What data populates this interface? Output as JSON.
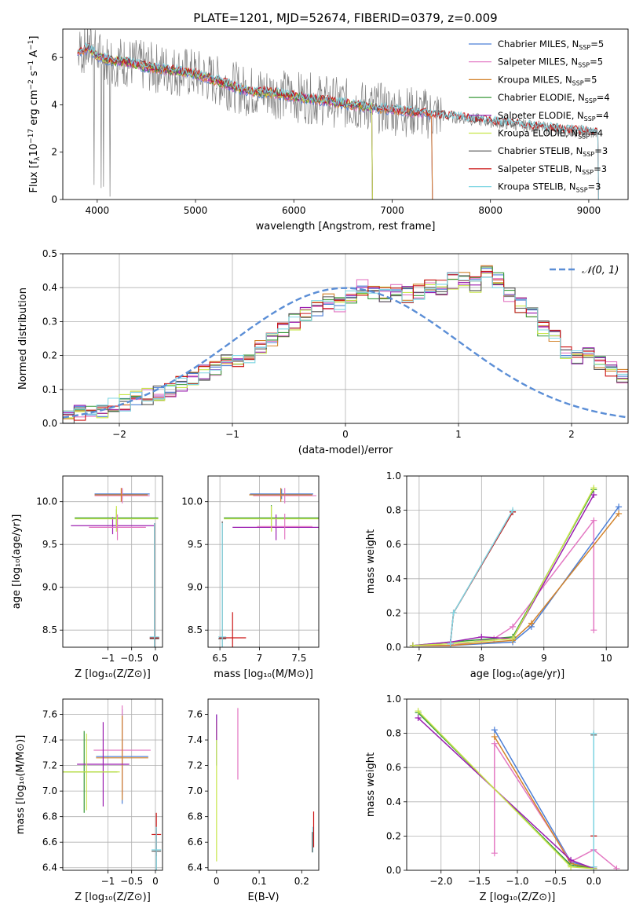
{
  "title": "PLATE=1201, MJD=52674, FIBERID=0379, z=0.009",
  "colors": {
    "Chabrier MILES": "#4c7fd6",
    "Salpeter MILES": "#e377c2",
    "Kroupa MILES": "#d2822a",
    "Chabrier ELODIE": "#3a9a3a",
    "Salpeter ELODIE": "#9b1fb0",
    "Kroupa ELODIE": "#c8e64a",
    "Chabrier STELIB": "#555555",
    "Salpeter STELIB": "#cc1414",
    "Kroupa STELIB": "#7fd6e3",
    "data": "#808080",
    "gauss": "#5b8ed6"
  },
  "chart_data": [
    {
      "type": "line",
      "xlabel": "wavelength [Angstrom, rest frame]",
      "ylabel": "Flux [f_λ10^-17 erg cm^-2 s^-1 A^-1]",
      "xlim": [
        3650,
        9400
      ],
      "ylim": [
        0,
        7.2
      ],
      "xticks": [
        4000,
        5000,
        6000,
        7000,
        8000,
        9000
      ],
      "yticks": [
        0,
        2,
        4,
        6
      ],
      "grid": false,
      "legend": "top-right",
      "legend_entries": [
        "Chabrier MILES, N_SSP=5",
        "Salpeter MILES, N_SSP=5",
        "Kroupa MILES, N_SSP=5",
        "Chabrier ELODIE, N_SSP=4",
        "Salpeter ELODIE, N_SSP=4",
        "Kroupa ELODIE, N_SSP=4",
        "Chabrier STELIB, N_SSP=3",
        "Salpeter STELIB, N_SSP=3",
        "Kroupa STELIB, N_SSP=3"
      ],
      "continuum": {
        "x": [
          3800,
          3900,
          4000,
          4100,
          4300,
          4500,
          4700,
          5000,
          5300,
          5500,
          5800,
          6000,
          6300,
          6600,
          7000,
          7400,
          7800,
          8200,
          8600,
          9100
        ],
        "y": [
          6.2,
          6.4,
          6.1,
          5.9,
          5.8,
          5.6,
          5.5,
          5.3,
          4.9,
          4.6,
          4.5,
          4.35,
          4.2,
          4.0,
          3.8,
          3.6,
          3.4,
          3.2,
          3.0,
          2.8
        ]
      }
    },
    {
      "type": "line",
      "xlabel": "(data-model)/error",
      "ylabel": "Normed distribution",
      "xlim": [
        -2.5,
        2.5
      ],
      "ylim": [
        0,
        0.5
      ],
      "xticks": [
        -2,
        -1,
        0,
        1,
        2
      ],
      "yticks": [
        0.0,
        0.1,
        0.2,
        0.3,
        0.4,
        0.5
      ],
      "grid": true,
      "legend": "top-right",
      "legend_entry": "𝒩(0, 1)",
      "hist_edges_start": -2.5,
      "hist_bin_width": 0.1,
      "hist_values": [
        0.02,
        0.03,
        0.035,
        0.04,
        0.05,
        0.06,
        0.07,
        0.08,
        0.09,
        0.1,
        0.115,
        0.13,
        0.15,
        0.165,
        0.18,
        0.19,
        0.2,
        0.22,
        0.25,
        0.28,
        0.3,
        0.32,
        0.34,
        0.36,
        0.35,
        0.37,
        0.4,
        0.39,
        0.38,
        0.4,
        0.38,
        0.39,
        0.41,
        0.4,
        0.42,
        0.43,
        0.41,
        0.45,
        0.42,
        0.38,
        0.35,
        0.32,
        0.28,
        0.25,
        0.21,
        0.19,
        0.2,
        0.18,
        0.16,
        0.14
      ]
    },
    {
      "type": "scatter",
      "xlabel": "Z [log10(Z/Z⊙)]",
      "ylabel": "age  [log10(age/yr)]",
      "xlim": [
        -1.95,
        0.15
      ],
      "ylim": [
        8.3,
        10.3
      ],
      "xticks": [
        -1,
        -0.5,
        0
      ],
      "xticklabels": [
        "−1",
        "−0.5",
        "0"
      ],
      "yticks": [
        8.5,
        9.0,
        9.5,
        10.0
      ],
      "grid": true,
      "errorbars": [
        {
          "s": "Chabrier MILES",
          "x": -0.7,
          "xerr": 0.58,
          "y": 10.09,
          "yerr": 0.06
        },
        {
          "s": "Salpeter MILES",
          "x": -0.7,
          "xerr": 0.58,
          "y": 10.07,
          "yerr": 0.09
        },
        {
          "s": "Kroupa MILES",
          "x": -0.72,
          "xerr": 0.56,
          "y": 10.08,
          "yerr": 0.08
        },
        {
          "s": "Chabrier ELODIE",
          "x": -0.82,
          "xerr": 0.88,
          "y": 9.81,
          "yerr": 0.1
        },
        {
          "s": "Salpeter ELODIE",
          "x": -0.9,
          "xerr": 0.88,
          "y": 9.72,
          "yerr": 0.1
        },
        {
          "s": "Kroupa ELODIE",
          "x": -0.82,
          "xerr": 0.88,
          "y": 9.8,
          "yerr": 0.15
        },
        {
          "s": "Salpeter MILES",
          "x": -0.8,
          "xerr": 0.6,
          "y": 9.7,
          "yerr": 0.15
        },
        {
          "s": "Chabrier STELIB",
          "x": -0.02,
          "xerr": 0.1,
          "y": 8.4,
          "yerr": 1.35
        },
        {
          "s": "Salpeter STELIB",
          "x": -0.02,
          "xerr": 0.1,
          "y": 8.41,
          "yerr": 1.34
        },
        {
          "s": "Kroupa STELIB",
          "x": -0.02,
          "xerr": 0.1,
          "y": 8.42,
          "yerr": 1.33
        }
      ]
    },
    {
      "type": "scatter",
      "xlabel": "mass [log10(M/M⊙)]",
      "ylabel": "",
      "xlim": [
        6.35,
        7.75
      ],
      "ylim": [
        8.3,
        10.3
      ],
      "xticks": [
        6.5,
        7.0,
        7.5
      ],
      "yticks": [
        8.5,
        9.0,
        9.5,
        10.0
      ],
      "grid": true,
      "errorbars": [
        {
          "s": "Chabrier MILES",
          "x": 7.28,
          "xerr": 0.4,
          "y": 10.09,
          "yerr": 0.06
        },
        {
          "s": "Salpeter MILES",
          "x": 7.32,
          "xerr": 0.4,
          "y": 10.07,
          "yerr": 0.09
        },
        {
          "s": "Kroupa MILES",
          "x": 7.27,
          "xerr": 0.4,
          "y": 10.08,
          "yerr": 0.08
        },
        {
          "s": "Chabrier ELODIE",
          "x": 7.15,
          "xerr": 0.6,
          "y": 9.81,
          "yerr": 0.15
        },
        {
          "s": "Salpeter ELODIE",
          "x": 7.21,
          "xerr": 0.55,
          "y": 9.7,
          "yerr": 0.15
        },
        {
          "s": "Kroupa ELODIE",
          "x": 7.15,
          "xerr": 0.6,
          "y": 9.8,
          "yerr": 0.15
        },
        {
          "s": "Salpeter MILES",
          "x": 7.32,
          "xerr": 0.35,
          "y": 9.71,
          "yerr": 0.15
        },
        {
          "s": "Chabrier STELIB",
          "x": 6.53,
          "xerr": 0.05,
          "y": 8.4,
          "yerr": 1.37
        },
        {
          "s": "Salpeter STELIB",
          "x": 6.66,
          "xerr": 0.17,
          "y": 8.41,
          "yerr": 0.3
        },
        {
          "s": "Kroupa STELIB",
          "x": 6.53,
          "xerr": 0.05,
          "y": 8.42,
          "yerr": 1.33
        }
      ]
    },
    {
      "type": "line",
      "xlabel": "age  [log10(age/yr)]",
      "ylabel": "mass weight",
      "xlim": [
        6.8,
        10.35
      ],
      "ylim": [
        0,
        1
      ],
      "xticks": [
        7,
        8,
        9,
        10
      ],
      "yticks": [
        0.0,
        0.2,
        0.4,
        0.6,
        0.8,
        1.0
      ],
      "grid": true,
      "series": [
        {
          "s": "Chabrier MILES",
          "x": [
            6.9,
            7.5,
            8.5,
            8.8,
            10.2
          ],
          "y": [
            0.01,
            0.01,
            0.03,
            0.12,
            0.82
          ]
        },
        {
          "s": "Salpeter MILES",
          "x": [
            6.9,
            7.5,
            8.2,
            8.5,
            9.8,
            9.8
          ],
          "y": [
            0.01,
            0.01,
            0.05,
            0.12,
            0.74,
            0.1
          ]
        },
        {
          "s": "Kroupa MILES",
          "x": [
            6.9,
            7.5,
            8.5,
            8.8,
            10.2
          ],
          "y": [
            0.01,
            0.01,
            0.04,
            0.14,
            0.78
          ]
        },
        {
          "s": "Chabrier ELODIE",
          "x": [
            6.9,
            7.5,
            8.5,
            9.8
          ],
          "y": [
            0.01,
            0.03,
            0.06,
            0.92
          ]
        },
        {
          "s": "Salpeter ELODIE",
          "x": [
            6.9,
            7.5,
            8.0,
            8.5,
            9.8
          ],
          "y": [
            0.01,
            0.03,
            0.06,
            0.05,
            0.89
          ]
        },
        {
          "s": "Kroupa ELODIE",
          "x": [
            6.9,
            7.5,
            8.5,
            9.8
          ],
          "y": [
            0.01,
            0.02,
            0.05,
            0.93
          ]
        },
        {
          "s": "Chabrier STELIB",
          "x": [
            7.5,
            7.55,
            8.5
          ],
          "y": [
            0.02,
            0.2,
            0.79
          ]
        },
        {
          "s": "Salpeter STELIB",
          "x": [
            7.5,
            7.55,
            8.5
          ],
          "y": [
            0.02,
            0.2,
            0.79
          ]
        },
        {
          "s": "Kroupa STELIB",
          "x": [
            7.5,
            7.55,
            8.5
          ],
          "y": [
            0.02,
            0.2,
            0.8
          ]
        }
      ]
    },
    {
      "type": "scatter",
      "xlabel": "Z [log10(Z/Z⊙)]",
      "ylabel": "mass [log10(M/M⊙)]",
      "xlim": [
        -1.95,
        0.15
      ],
      "ylim": [
        6.38,
        7.72
      ],
      "xticks": [
        -1,
        -0.5,
        0
      ],
      "xticklabels": [
        "−1",
        "−0.5",
        "0"
      ],
      "yticks": [
        6.4,
        6.6,
        6.8,
        7.0,
        7.2,
        7.4,
        7.6
      ],
      "grid": true,
      "errorbars": [
        {
          "s": "Chabrier MILES",
          "x": -0.7,
          "xerr": 0.55,
          "y": 7.27,
          "yerr": 0.37
        },
        {
          "s": "Salpeter MILES",
          "x": -0.7,
          "xerr": 0.6,
          "y": 7.32,
          "yerr": 0.35
        },
        {
          "s": "Kroupa MILES",
          "x": -0.7,
          "xerr": 0.55,
          "y": 7.26,
          "yerr": 0.33
        },
        {
          "s": "Chabrier ELODIE",
          "x": -1.5,
          "xerr": 0.7,
          "y": 7.15,
          "yerr": 0.32
        },
        {
          "s": "Salpeter ELODIE",
          "x": -1.1,
          "xerr": 0.55,
          "y": 7.21,
          "yerr": 0.33
        },
        {
          "s": "Kroupa ELODIE",
          "x": -1.45,
          "xerr": 0.7,
          "y": 7.15,
          "yerr": 0.3
        },
        {
          "s": "Chabrier STELIB",
          "x": 0.02,
          "xerr": 0.1,
          "y": 6.53,
          "yerr": 0.18
        },
        {
          "s": "Salpeter STELIB",
          "x": 0.02,
          "xerr": 0.1,
          "y": 6.66,
          "yerr": 0.17
        },
        {
          "s": "Kroupa STELIB",
          "x": 0.02,
          "xerr": 0.1,
          "y": 6.54,
          "yerr": 0.18
        }
      ]
    },
    {
      "type": "scatter",
      "xlabel": "E(B-V)",
      "ylabel": "",
      "xlim": [
        -0.02,
        0.24
      ],
      "ylim": [
        6.38,
        7.72
      ],
      "xticks": [
        0.0,
        0.1,
        0.2
      ],
      "yticks": [
        6.4,
        6.6,
        6.8,
        7.0,
        7.2,
        7.4,
        7.6
      ],
      "grid": false,
      "errorbars": [
        {
          "s": "Chabrier MILES",
          "x": 0.0,
          "xerr": 0,
          "y": 7.4,
          "yerr": 0.2
        },
        {
          "s": "Kroupa ELODIE",
          "x": 0.0,
          "xerr": 0,
          "y": 7.0,
          "yerr": 0.55
        },
        {
          "s": "Salpeter ELODIE",
          "x": 0.0,
          "xerr": 0,
          "y": 7.5,
          "yerr": 0.1
        },
        {
          "s": "Salpeter MILES",
          "x": 0.05,
          "xerr": 0,
          "y": 7.37,
          "yerr": 0.28
        },
        {
          "s": "Salpeter STELIB",
          "x": 0.228,
          "xerr": 0,
          "y": 6.7,
          "yerr": 0.14
        },
        {
          "s": "Kroupa STELIB",
          "x": 0.226,
          "xerr": 0,
          "y": 6.62,
          "yerr": 0.1
        },
        {
          "s": "Chabrier STELIB",
          "x": 0.225,
          "xerr": 0,
          "y": 6.6,
          "yerr": 0.08
        }
      ]
    },
    {
      "type": "line",
      "xlabel": "Z [log10(Z/Z⊙)]",
      "ylabel": "mass weight",
      "xlim": [
        -2.45,
        0.45
      ],
      "ylim": [
        0,
        1
      ],
      "xticks": [
        -2.0,
        -1.5,
        -1.0,
        -0.5,
        0.0
      ],
      "xticklabels": [
        "−2.0",
        "−1.5",
        "−1.0",
        "−0.5",
        "0.0"
      ],
      "yticks": [
        0.0,
        0.2,
        0.4,
        0.6,
        0.8,
        1.0
      ],
      "grid": true,
      "series": [
        {
          "s": "Chabrier MILES",
          "x": [
            -1.3,
            -0.3,
            0.0
          ],
          "y": [
            0.82,
            0.05,
            0.01
          ]
        },
        {
          "s": "Salpeter MILES",
          "x": [
            -1.3,
            -1.3,
            -0.3,
            0.0,
            0.3
          ],
          "y": [
            0.1,
            0.74,
            0.05,
            0.12,
            0.01
          ]
        },
        {
          "s": "Kroupa MILES",
          "x": [
            -1.3,
            -0.3,
            0.0
          ],
          "y": [
            0.78,
            0.04,
            0.01
          ]
        },
        {
          "s": "Chabrier ELODIE",
          "x": [
            -2.3,
            -0.3,
            0.0
          ],
          "y": [
            0.92,
            0.03,
            0.01
          ]
        },
        {
          "s": "Salpeter ELODIE",
          "x": [
            -2.3,
            -0.3,
            0.0
          ],
          "y": [
            0.89,
            0.06,
            0.01
          ]
        },
        {
          "s": "Kroupa ELODIE",
          "x": [
            -2.3,
            -0.3,
            0.0
          ],
          "y": [
            0.93,
            0.02,
            0.01
          ]
        },
        {
          "s": "Chabrier STELIB",
          "x": [
            0.0,
            0.0,
            0.0
          ],
          "y": [
            0.02,
            0.2,
            0.79
          ]
        },
        {
          "s": "Salpeter STELIB",
          "x": [
            0.0,
            0.0
          ],
          "y": [
            0.2,
            0.02
          ]
        },
        {
          "s": "Kroupa STELIB",
          "x": [
            0.0,
            0.0
          ],
          "y": [
            0.02,
            0.8
          ]
        }
      ]
    }
  ]
}
